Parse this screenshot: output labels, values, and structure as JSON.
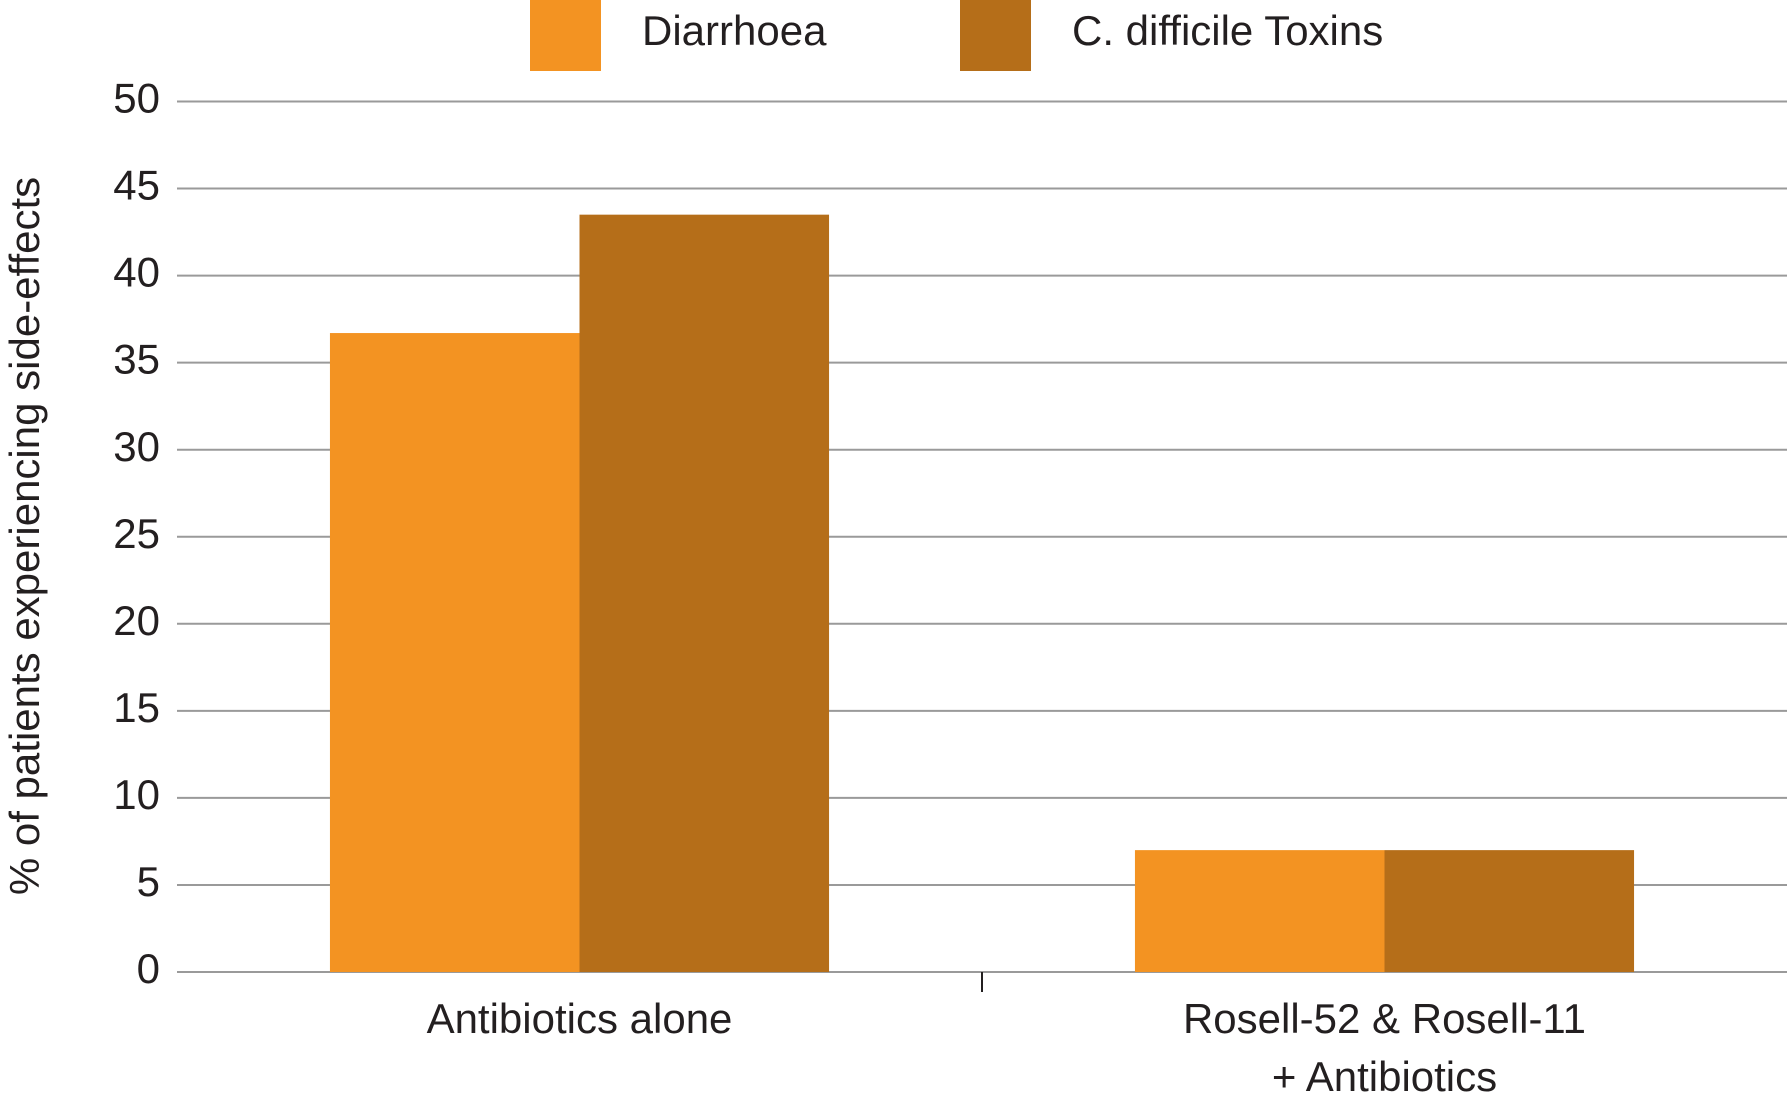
{
  "chart_data": {
    "type": "bar",
    "y_label": "% of patients experiencing side-effects",
    "categories": [
      "Antibiotics alone",
      "Rosell-52 & Rosell-11 + Antibiotics"
    ],
    "series": [
      {
        "name": "Diarrhoea",
        "color": "#f39322",
        "values": [
          36.7,
          7
        ]
      },
      {
        "name": "C. difficile Toxins",
        "color": "#b56e19",
        "values": [
          43.5,
          7
        ]
      }
    ],
    "ylim": [
      0,
      50
    ],
    "yticks": [
      0,
      5,
      10,
      15,
      20,
      25,
      30,
      35,
      40,
      45,
      50
    ],
    "grid": true,
    "legend": "top"
  }
}
